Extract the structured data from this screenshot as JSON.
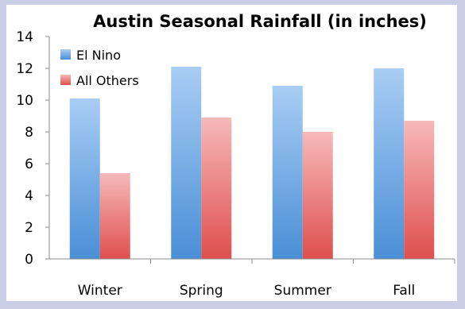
{
  "chart_data": {
    "type": "bar",
    "title": "Austin Seasonal Rainfall (in inches)",
    "xlabel": "",
    "ylabel": "",
    "categories": [
      "Winter",
      "Spring",
      "Summer",
      "Fall"
    ],
    "series": [
      {
        "name": "El Nino",
        "values": [
          10.1,
          12.1,
          10.9,
          12.0
        ],
        "color": "#6aa3e0"
      },
      {
        "name": "All Others",
        "values": [
          5.4,
          8.9,
          8.0,
          8.7
        ],
        "color": "#e86a6a"
      }
    ],
    "ylim": [
      0,
      14
    ],
    "yticks": [
      "0",
      "2",
      "4",
      "6",
      "8",
      "10",
      "12",
      "14"
    ],
    "grid": false,
    "legend_position": "top-left",
    "background_color": "#c9cde6",
    "plot_background_color": "#ffffff"
  }
}
